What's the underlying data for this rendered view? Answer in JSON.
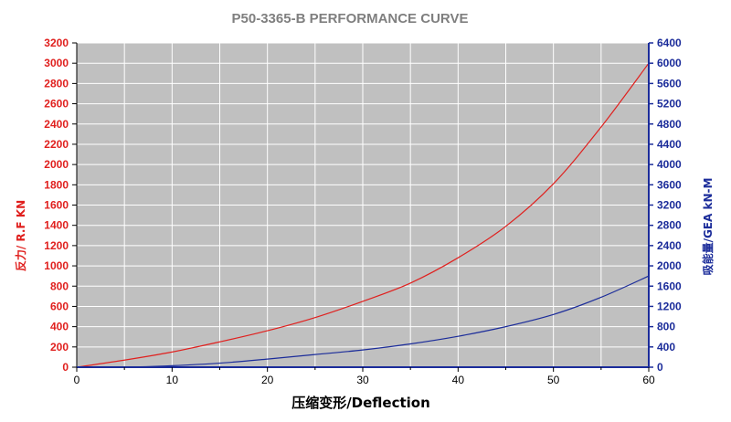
{
  "chart_data": {
    "type": "line",
    "title": "P50-3365-B PERFORMANCE CURVE",
    "xlabel": "压缩变形/Deflection",
    "ylabel_left": "反力/ R.F  KN",
    "ylabel_right": "吸能量/GEA kN-M",
    "xlim": [
      0,
      60
    ],
    "ylim_left": [
      0,
      3200
    ],
    "ylim_right": [
      0,
      6400
    ],
    "x_ticks": [
      0,
      10,
      20,
      30,
      40,
      50,
      60
    ],
    "y_ticks_left": [
      0,
      200,
      400,
      600,
      800,
      1000,
      1200,
      1400,
      1600,
      1800,
      2000,
      2200,
      2400,
      2600,
      2800,
      3000,
      3200
    ],
    "y_ticks_right": [
      0,
      400,
      800,
      1200,
      1600,
      2000,
      2400,
      2800,
      3200,
      3600,
      4000,
      4400,
      4800,
      5200,
      5600,
      6000,
      6400
    ],
    "grid": true,
    "colors": {
      "plot_background": "#c0c0c0",
      "grid": "#ffffff",
      "reaction_force": "#e0201e",
      "energy": "#1b2c9a",
      "left_axis": "#e0201e",
      "right_axis": "#1b2c9a",
      "title": "#7f7f7f"
    },
    "series": [
      {
        "axis": "left",
        "color": "#e0201e",
        "x": [
          0,
          5,
          10,
          15,
          20,
          25,
          30,
          35,
          40,
          45,
          50,
          55,
          60
        ],
        "y": [
          0,
          70,
          150,
          250,
          360,
          490,
          650,
          830,
          1080,
          1390,
          1810,
          2370,
          3000
        ]
      },
      {
        "axis": "right",
        "color": "#1b2c9a",
        "x": [
          0,
          5,
          10,
          15,
          20,
          25,
          30,
          35,
          40,
          45,
          50,
          55,
          60
        ],
        "y": [
          0,
          0,
          30,
          80,
          160,
          250,
          340,
          460,
          610,
          800,
          1040,
          1380,
          1800
        ]
      }
    ]
  }
}
